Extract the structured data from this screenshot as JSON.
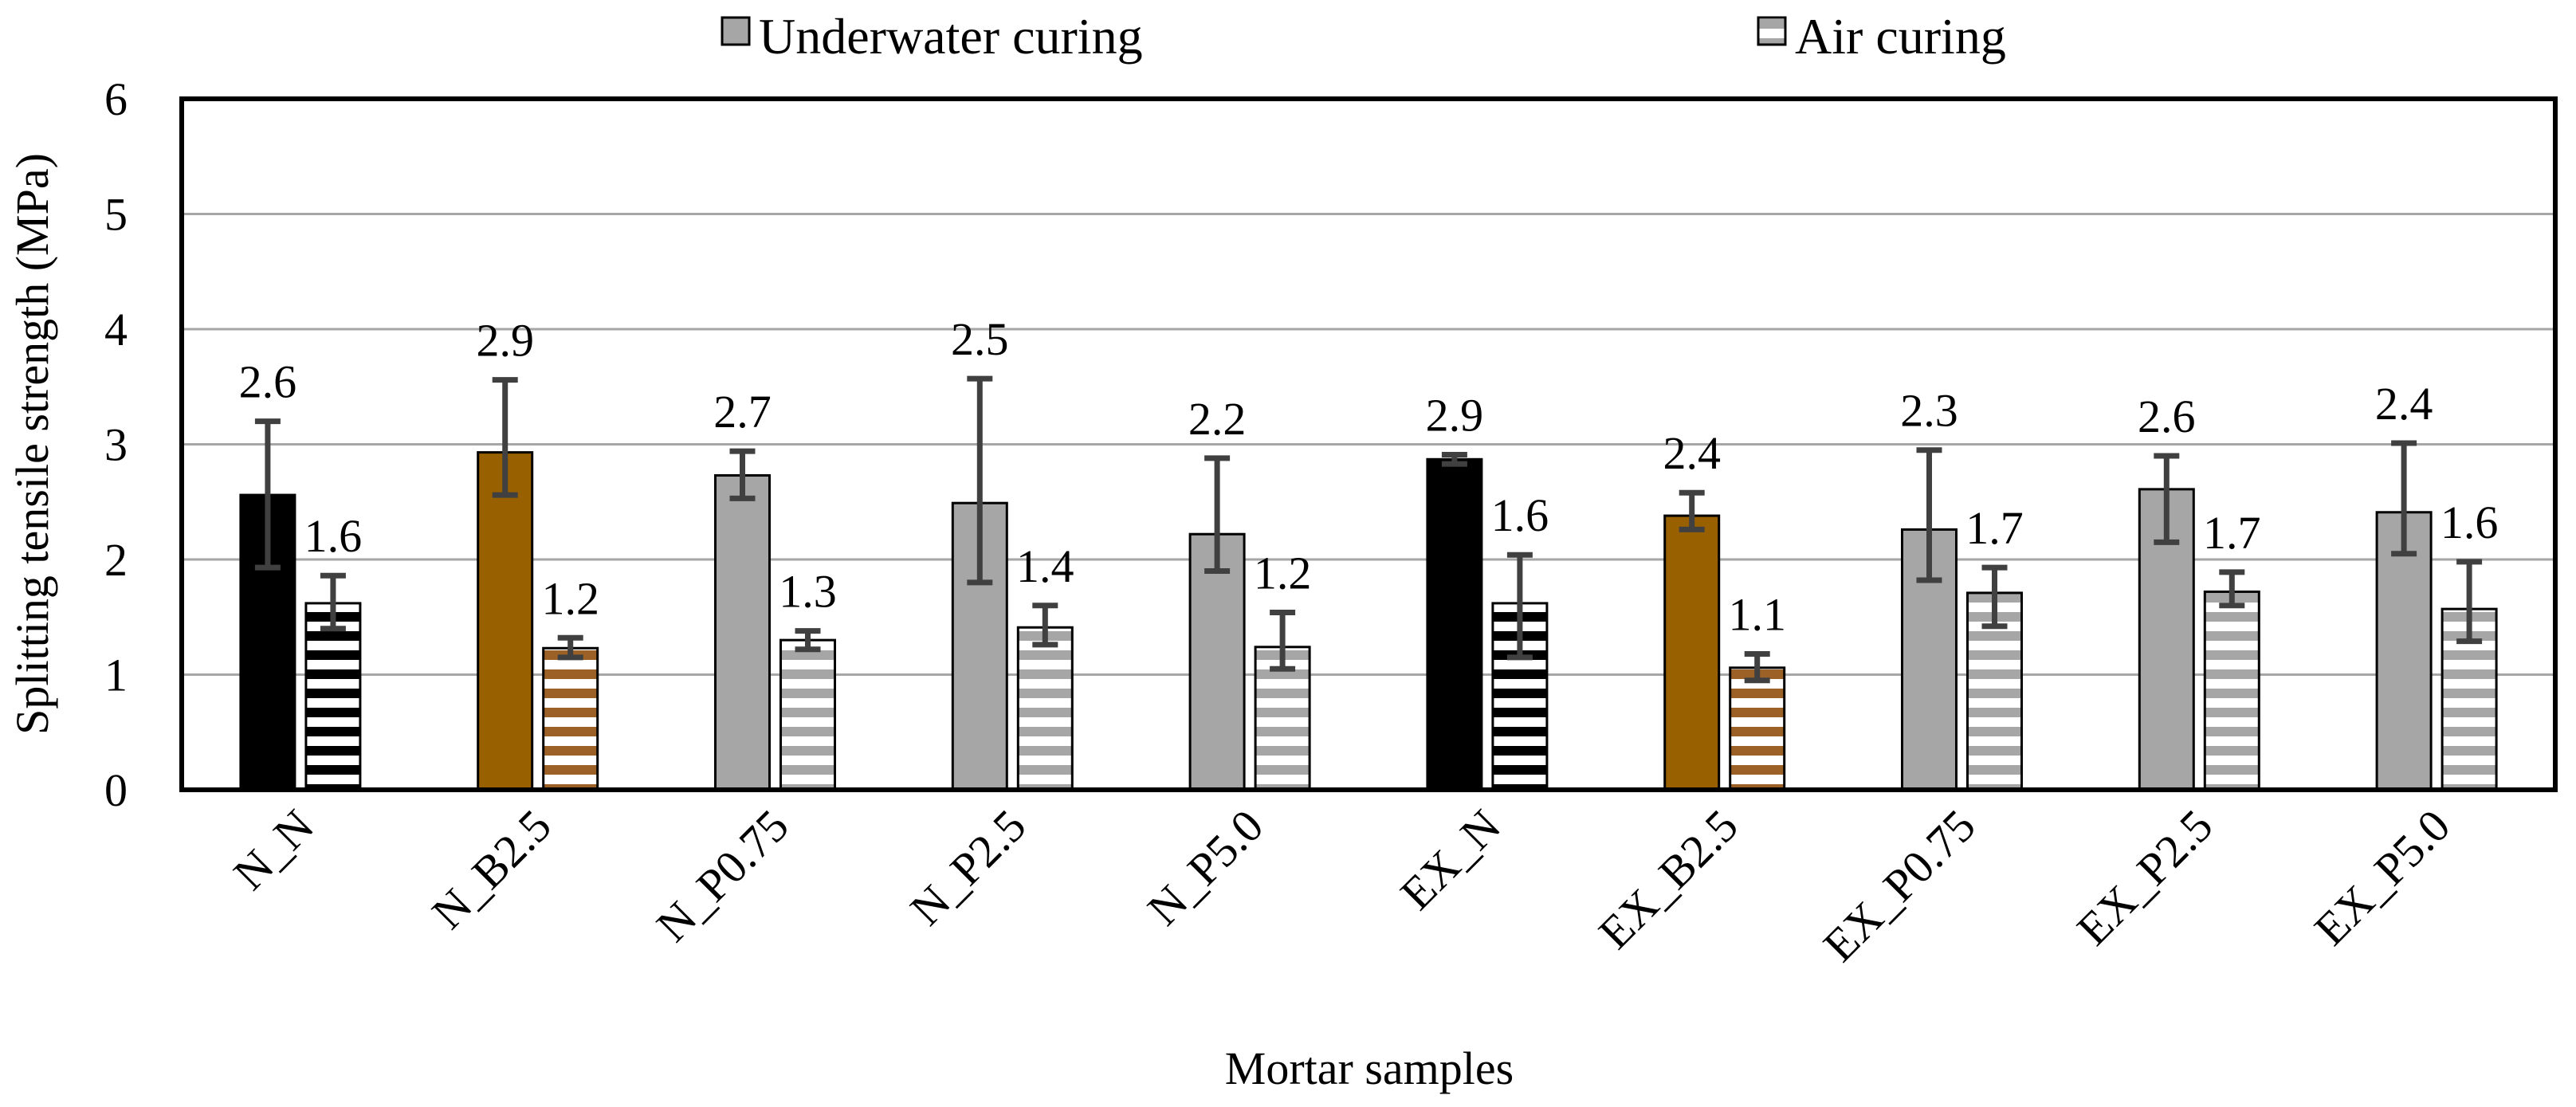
{
  "chart_data": {
    "type": "bar",
    "title": "",
    "xlabel": "Mortar samples",
    "ylabel": "Splitting tensile strength (MPa)",
    "ylim": [
      0,
      6
    ],
    "yticks": [
      0,
      1,
      2,
      3,
      4,
      5,
      6
    ],
    "grid": true,
    "legend_position": "top",
    "categories": [
      "N_N",
      "N_B2.5",
      "N_P0.75",
      "N_P2.5",
      "N_P5.0",
      "EX_N",
      "EX_B2.5",
      "EX_P0.75",
      "EX_P2.5",
      "EX_P5.0"
    ],
    "series": [
      {
        "name": "Underwater curing",
        "pattern": "solid",
        "values": [
          2.56,
          2.93,
          2.73,
          2.49,
          2.22,
          2.87,
          2.38,
          2.26,
          2.61,
          2.41
        ],
        "labels": [
          "2.6",
          "2.9",
          "2.7",
          "2.5",
          "2.2",
          "2.9",
          "2.4",
          "2.3",
          "2.6",
          "2.4"
        ],
        "error_low": [
          1.93,
          2.56,
          2.53,
          1.8,
          1.9,
          2.83,
          2.26,
          1.82,
          2.15,
          2.05
        ],
        "error_high": [
          3.2,
          3.56,
          2.94,
          3.57,
          2.88,
          2.91,
          2.58,
          2.95,
          2.9,
          3.01
        ],
        "colors": [
          "#000000",
          "#996000",
          "#a6a6a6",
          "#a6a6a6",
          "#a6a6a6",
          "#000000",
          "#996000",
          "#a6a6a6",
          "#a6a6a6",
          "#a6a6a6"
        ]
      },
      {
        "name": "Air curing",
        "pattern": "horizontal-stripes",
        "values": [
          1.62,
          1.23,
          1.3,
          1.41,
          1.24,
          1.62,
          1.06,
          1.71,
          1.72,
          1.57
        ],
        "labels": [
          "1.6",
          "1.2",
          "1.3",
          "1.4",
          "1.2",
          "1.6",
          "1.1",
          "1.7",
          "1.7",
          "1.6"
        ],
        "error_low": [
          1.4,
          1.15,
          1.22,
          1.26,
          1.05,
          1.15,
          0.95,
          1.42,
          1.6,
          1.29
        ],
        "error_high": [
          1.86,
          1.32,
          1.38,
          1.6,
          1.54,
          2.04,
          1.18,
          1.93,
          1.89,
          1.98
        ],
        "colors": [
          "#000000",
          "#9c6127",
          "#a6a6a6",
          "#a6a6a6",
          "#a6a6a6",
          "#000000",
          "#9c6127",
          "#a6a6a6",
          "#a6a6a6",
          "#a6a6a6"
        ]
      }
    ],
    "gridline_color": "#a6a6a6",
    "errorbar_color": "#404040"
  }
}
